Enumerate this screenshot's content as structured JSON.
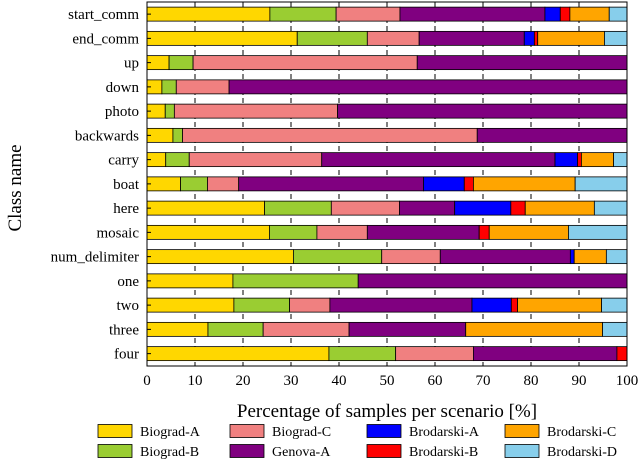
{
  "chart_data": {
    "type": "bar",
    "orientation": "horizontal",
    "stacked": true,
    "title": "",
    "xlabel": "Percentage of samples per scenario [%]",
    "ylabel": "Class name",
    "xlim": [
      0,
      100
    ],
    "xticks": [
      "0",
      "10",
      "20",
      "30",
      "40",
      "50",
      "60",
      "70",
      "80",
      "90",
      "100"
    ],
    "grid": "vertical dashed",
    "legend_position": "bottom",
    "categories": [
      "start_comm",
      "end_comm",
      "up",
      "down",
      "photo",
      "backwards",
      "carry",
      "boat",
      "here",
      "mosaic",
      "num_delimiter",
      "one",
      "two",
      "three",
      "four"
    ],
    "series": [
      {
        "name": "Biograd-A",
        "color": "#FFD700",
        "values": [
          25.6,
          31.3,
          4.6,
          3.1,
          3.8,
          5.4,
          3.9,
          7.0,
          24.5,
          25.5,
          30.5,
          17.9,
          18.1,
          12.7,
          37.9
        ]
      },
      {
        "name": "Biograd-B",
        "color": "#9ACD32",
        "values": [
          13.8,
          14.6,
          5.0,
          3.0,
          1.9,
          2.0,
          4.9,
          5.6,
          13.9,
          9.9,
          18.4,
          26.1,
          11.6,
          11.5,
          13.9
        ]
      },
      {
        "name": "Biograd-C",
        "color": "#F08080",
        "values": [
          13.3,
          10.8,
          46.7,
          11.0,
          34.0,
          61.4,
          27.6,
          6.5,
          14.2,
          10.5,
          12.2,
          0,
          8.4,
          17.9,
          16.2
        ]
      },
      {
        "name": "Genova-A",
        "color": "#800080",
        "values": [
          30.2,
          21.9,
          43.7,
          82.9,
          60.3,
          31.2,
          48.6,
          38.5,
          11.5,
          23.3,
          27.1,
          56.0,
          29.6,
          24.3,
          29.9
        ]
      },
      {
        "name": "Brodarski-A",
        "color": "#0000FF",
        "values": [
          3.2,
          2.1,
          0,
          0,
          0,
          0,
          4.7,
          8.5,
          11.7,
          0,
          0.8,
          0,
          8.2,
          0,
          0
        ]
      },
      {
        "name": "Brodarski-B",
        "color": "#FF0000",
        "values": [
          2.0,
          0.7,
          0,
          0,
          0,
          0,
          0.8,
          1.9,
          3.0,
          2.1,
          0,
          0,
          1.3,
          0,
          2.1
        ]
      },
      {
        "name": "Brodarski-C",
        "color": "#FFA500",
        "values": [
          8.2,
          13.9,
          0,
          0,
          0,
          0,
          6.7,
          21.2,
          14.4,
          16.5,
          6.7,
          0,
          17.5,
          28.5,
          0
        ]
      },
      {
        "name": "Brodarski-D",
        "color": "#87CEEB",
        "values": [
          3.7,
          4.7,
          0,
          0,
          0,
          0,
          2.8,
          10.8,
          6.8,
          12.2,
          4.3,
          0,
          5.3,
          5.1,
          0
        ]
      }
    ]
  }
}
